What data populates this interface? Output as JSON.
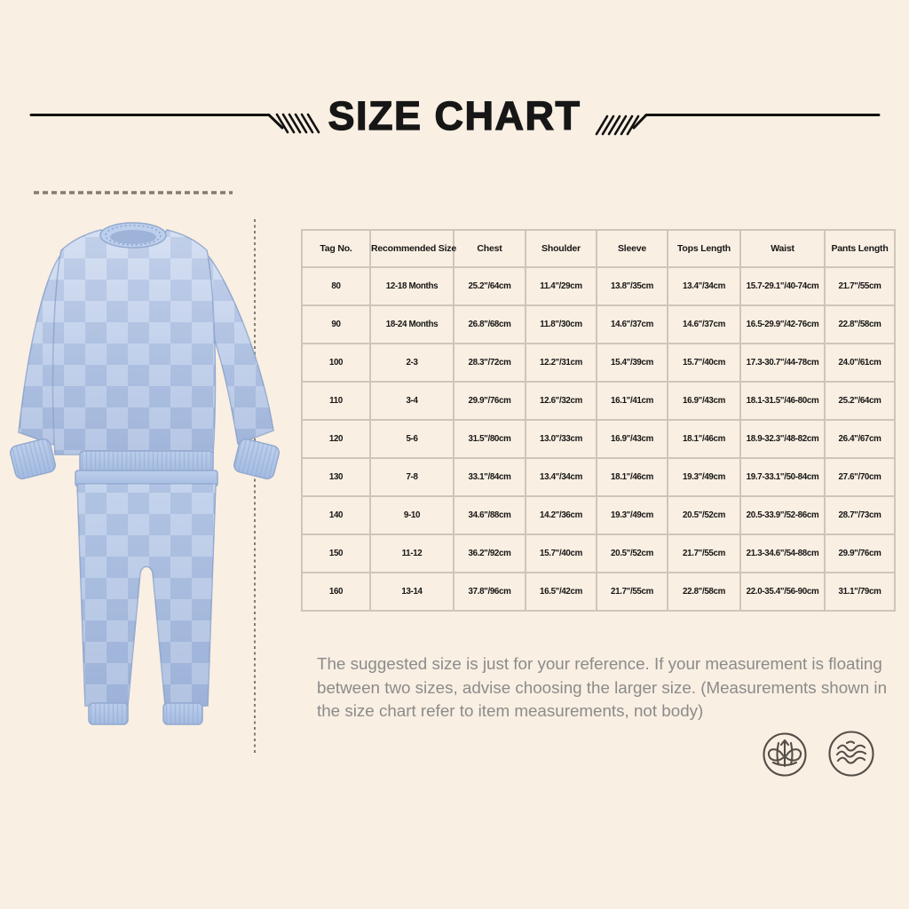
{
  "header": {
    "title": "SIZE CHART"
  },
  "chart_data": {
    "type": "table",
    "title": "SIZE CHART",
    "columns": [
      "Tag No.",
      "Recommended Size",
      "Chest",
      "Shoulder",
      "Sleeve",
      "Tops Length",
      "Waist",
      "Pants Length"
    ],
    "rows": [
      [
        "80",
        "12-18 Months",
        "25.2\"/64cm",
        "11.4\"/29cm",
        "13.8\"/35cm",
        "13.4\"/34cm",
        "15.7-29.1\"/40-74cm",
        "21.7\"/55cm"
      ],
      [
        "90",
        "18-24 Months",
        "26.8\"/68cm",
        "11.8\"/30cm",
        "14.6\"/37cm",
        "14.6\"/37cm",
        "16.5-29.9\"/42-76cm",
        "22.8\"/58cm"
      ],
      [
        "100",
        "2-3",
        "28.3\"/72cm",
        "12.2\"/31cm",
        "15.4\"/39cm",
        "15.7\"/40cm",
        "17.3-30.7\"/44-78cm",
        "24.0\"/61cm"
      ],
      [
        "110",
        "3-4",
        "29.9\"/76cm",
        "12.6\"/32cm",
        "16.1\"/41cm",
        "16.9\"/43cm",
        "18.1-31.5\"/46-80cm",
        "25.2\"/64cm"
      ],
      [
        "120",
        "5-6",
        "31.5\"/80cm",
        "13.0\"/33cm",
        "16.9\"/43cm",
        "18.1\"/46cm",
        "18.9-32.3\"/48-82cm",
        "26.4\"/67cm"
      ],
      [
        "130",
        "7-8",
        "33.1\"/84cm",
        "13.4\"/34cm",
        "18.1\"/46cm",
        "19.3\"/49cm",
        "19.7-33.1\"/50-84cm",
        "27.6\"/70cm"
      ],
      [
        "140",
        "9-10",
        "34.6\"/88cm",
        "14.2\"/36cm",
        "19.3\"/49cm",
        "20.5\"/52cm",
        "20.5-33.9\"/52-86cm",
        "28.7\"/73cm"
      ],
      [
        "150",
        "11-12",
        "36.2\"/92cm",
        "15.7\"/40cm",
        "20.5\"/52cm",
        "21.7\"/55cm",
        "21.3-34.6\"/54-88cm",
        "29.9\"/76cm"
      ],
      [
        "160",
        "13-14",
        "37.8\"/96cm",
        "16.5\"/42cm",
        "21.7\"/55cm",
        "22.8\"/58cm",
        "22.0-35.4\"/56-90cm",
        "31.1\"/79cm"
      ]
    ],
    "legend_position": "none",
    "grid": true
  },
  "note": {
    "text": "The suggested size is just for your reference. If your measurement is floating between two sizes, advise choosing the larger size. (Measurements shown in the size chart refer to item measurements, not body)"
  },
  "badges": [
    {
      "icon": "knot-icon"
    },
    {
      "icon": "waves-icon"
    }
  ],
  "colors": {
    "bg": "#f9efe2",
    "ink": "#161616",
    "tableBorder": "#cfc5b8",
    "noteText": "#8b8b8b",
    "dash": "#837c6f",
    "badgeStroke": "#534e47",
    "blueLight": "#cdd9f0",
    "blueMain": "#b6c8e7",
    "blueDeep": "#a2b7dc",
    "blueBand": "#aec4e6",
    "blueOutline": "#93a9d0"
  }
}
